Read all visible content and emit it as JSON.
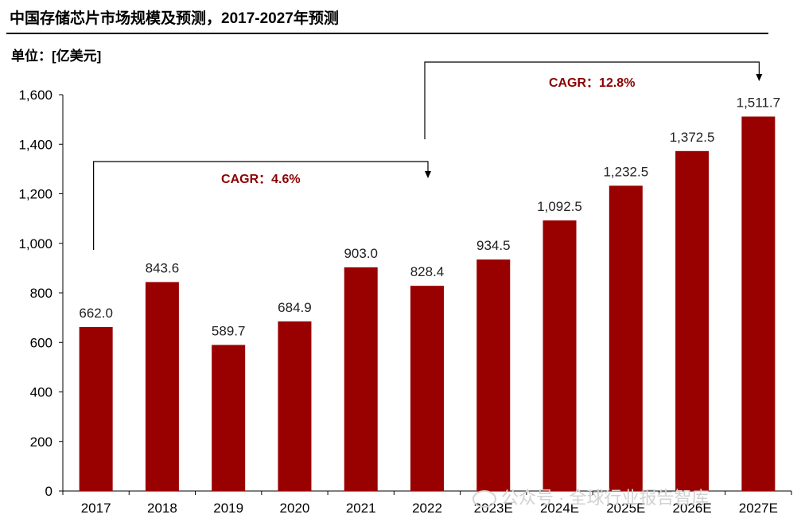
{
  "chart_data": {
    "type": "bar",
    "title": "中国存储芯片市场规模及预测，2017-2027年预测",
    "unit_label": "单位：[亿美元]",
    "categories": [
      "2017",
      "2018",
      "2019",
      "2020",
      "2021",
      "2022",
      "2023E",
      "2024E",
      "2025E",
      "2026E",
      "2027E"
    ],
    "values": [
      662.0,
      843.6,
      589.7,
      684.9,
      903.0,
      828.4,
      934.5,
      1092.5,
      1232.5,
      1372.5,
      1511.7
    ],
    "value_labels": [
      "662.0",
      "843.6",
      "589.7",
      "684.9",
      "903.0",
      "828.4",
      "934.5",
      "1,092.5",
      "1,232.5",
      "1,372.5",
      "1,511.7"
    ],
    "ylim": [
      0,
      1600
    ],
    "yticks": [
      0,
      200,
      400,
      600,
      800,
      1000,
      1200,
      1400,
      1600
    ],
    "ytick_labels": [
      "0",
      "200",
      "400",
      "600",
      "800",
      "1,000",
      "1,200",
      "1,400",
      "1,600"
    ],
    "bar_color": "#990000",
    "annotation_color": "#8b0000",
    "grid": false,
    "annotations": [
      {
        "text": "CAGR：4.6%",
        "from": "2017",
        "to": "2022"
      },
      {
        "text": "CAGR：12.8%",
        "from": "2022",
        "to": "2027E"
      }
    ]
  },
  "watermark": "公众号 · 全球行业报告智库"
}
